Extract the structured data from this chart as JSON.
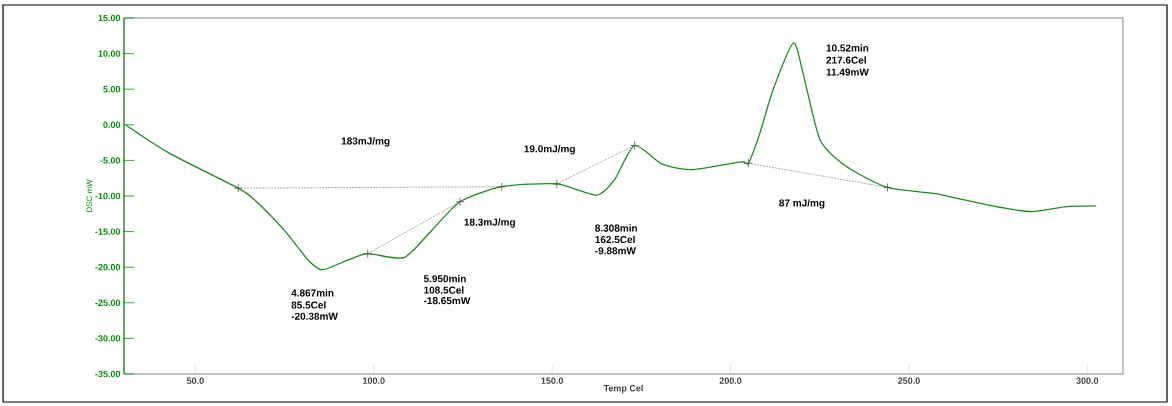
{
  "chart_data": {
    "type": "line",
    "xlabel": "Temp Cel",
    "ylabel": "DSC mW",
    "xlim": [
      30,
      310
    ],
    "ylim": [
      -35,
      15
    ],
    "xticks": [
      {
        "value": 50,
        "label": "50.0"
      },
      {
        "value": 100,
        "label": "100.0"
      },
      {
        "value": 150,
        "label": "150.0"
      },
      {
        "value": 200,
        "label": "200.0"
      },
      {
        "value": 250,
        "label": "250.0"
      },
      {
        "value": 300,
        "label": "300.0"
      }
    ],
    "yticks": [
      {
        "value": -35,
        "label": "-35.00"
      },
      {
        "value": -30,
        "label": "-30.00"
      },
      {
        "value": -25,
        "label": "-25.00"
      },
      {
        "value": -20,
        "label": "-20.00"
      },
      {
        "value": -15,
        "label": "-15.00"
      },
      {
        "value": -10,
        "label": "-10.00"
      },
      {
        "value": -5,
        "label": "-5.00"
      },
      {
        "value": 0,
        "label": "0.00"
      },
      {
        "value": 5,
        "label": "5.00"
      },
      {
        "value": 10,
        "label": "10.00"
      },
      {
        "value": 15,
        "label": "15.00"
      }
    ],
    "grid": false,
    "series": [
      {
        "color": "#1e8c1e",
        "line_style": "solid",
        "x": [
          30.4,
          42.4,
          62.0,
          66.5,
          74.9,
          81.6,
          85.5,
          92.7,
          98.3,
          108.5,
          116.3,
          124.2,
          135.9,
          151.3,
          162.5,
          167.5,
          173.1,
          180.7,
          189,
          203,
          205,
          208.2,
          211.9,
          217.6,
          220.3,
          225.1,
          232.6,
          244,
          257.7,
          273.4,
          284.3,
          294.1,
          302.5
        ],
        "values": [
          0,
          -3.9,
          -8.9,
          -10.5,
          -14.8,
          -19.0,
          -20.38,
          -19.0,
          -18.1,
          -18.65,
          -14.8,
          -10.8,
          -8.7,
          -8.3,
          -9.88,
          -7.7,
          -2.9,
          -5.5,
          -6.3,
          -5.2,
          -5.4,
          -1.2,
          4.9,
          11.49,
          7.3,
          -2.1,
          -5.9,
          -8.8,
          -9.7,
          -11.4,
          -12.2,
          -11.5,
          -11.4
        ]
      },
      {
        "color": "#555555",
        "line_style": "dashed",
        "marker": "cross",
        "x": [
          62.0,
          135.9
        ],
        "values": [
          -8.9,
          -8.7
        ]
      },
      {
        "color": "#555555",
        "line_style": "dashed",
        "marker": "cross",
        "x": [
          98.3,
          124.2
        ],
        "values": [
          -18.1,
          -10.8
        ]
      },
      {
        "color": "#555555",
        "line_style": "dashed",
        "marker": "cross",
        "x": [
          151.3,
          173.1
        ],
        "values": [
          -8.3,
          -2.9
        ]
      },
      {
        "color": "#555555",
        "line_style": "dashed",
        "marker": "cross",
        "x": [
          205,
          244
        ],
        "values": [
          -5.4,
          -8.8
        ]
      }
    ],
    "annotations": [
      "183mJ/mg",
      "19.0mJ/mg",
      "18.3mJ/mg",
      "87 mJ/mg",
      "4.867min",
      "85.5Cel",
      "-20.38mW",
      "5.950min",
      "108.5Cel",
      "-18.65mW",
      "8.308min",
      "162.5Cel",
      "-9.88mW",
      "10.52min",
      "217.6Cel",
      "11.49mW"
    ]
  }
}
